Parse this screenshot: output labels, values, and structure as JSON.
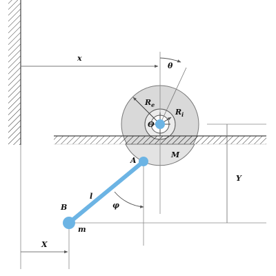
{
  "diagram": {
    "colors": {
      "wheel_outer": "#d9d9d9",
      "wheel_inner": "#ebebeb",
      "link": "#6cb4e4",
      "ground": "#ffffff",
      "line": "#555555"
    },
    "labels": {
      "x": "x",
      "theta": "θ",
      "Re_main": "R",
      "Re_sub": "e",
      "Ri_main": "R",
      "Ri_sub": "i",
      "O": "O",
      "M": "M",
      "A": "A",
      "B": "B",
      "l": "l",
      "m": "m",
      "phi": "φ",
      "Y": "Y",
      "X": "X"
    }
  }
}
